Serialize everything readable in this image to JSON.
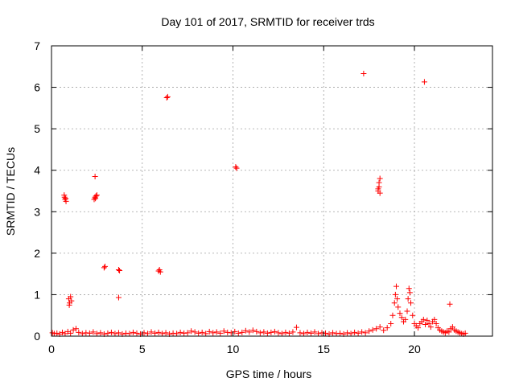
{
  "chart_data": {
    "type": "scatter",
    "title": "Day 101 of 2017, SRMTID for receiver trds",
    "xlabel": "GPS time / hours",
    "ylabel": "SRMTID / TECUs",
    "xlim": [
      0,
      24.3
    ],
    "ylim": [
      0,
      7
    ],
    "x_ticks": [
      0,
      5,
      10,
      15,
      20
    ],
    "y_ticks": [
      0,
      1,
      2,
      3,
      4,
      5,
      6,
      7
    ],
    "grid": true,
    "marker": "+",
    "marker_color": "#ff0000",
    "series": [
      {
        "name": "SRMTID",
        "points": [
          [
            0.05,
            0.08
          ],
          [
            0.15,
            0.06
          ],
          [
            0.3,
            0.07
          ],
          [
            0.45,
            0.05
          ],
          [
            0.6,
            0.09
          ],
          [
            0.75,
            0.06
          ],
          [
            0.9,
            0.11
          ],
          [
            1.05,
            0.07
          ],
          [
            1.2,
            0.15
          ],
          [
            1.35,
            0.18
          ],
          [
            1.5,
            0.09
          ],
          [
            1.7,
            0.06
          ],
          [
            1.9,
            0.08
          ],
          [
            2.1,
            0.07
          ],
          [
            2.3,
            0.1
          ],
          [
            2.5,
            0.06
          ],
          [
            2.7,
            0.08
          ],
          [
            2.9,
            0.05
          ],
          [
            3.1,
            0.07
          ],
          [
            3.3,
            0.09
          ],
          [
            3.5,
            0.06
          ],
          [
            3.7,
            0.08
          ],
          [
            3.9,
            0.05
          ],
          [
            4.1,
            0.07
          ],
          [
            4.3,
            0.06
          ],
          [
            4.5,
            0.09
          ],
          [
            4.7,
            0.07
          ],
          [
            4.9,
            0.05
          ],
          [
            5.1,
            0.08
          ],
          [
            5.3,
            0.06
          ],
          [
            5.5,
            0.1
          ],
          [
            5.7,
            0.07
          ],
          [
            5.9,
            0.09
          ],
          [
            6.1,
            0.06
          ],
          [
            6.3,
            0.08
          ],
          [
            6.5,
            0.05
          ],
          [
            6.7,
            0.07
          ],
          [
            6.9,
            0.06
          ],
          [
            7.1,
            0.09
          ],
          [
            7.3,
            0.07
          ],
          [
            7.5,
            0.08
          ],
          [
            7.7,
            0.12
          ],
          [
            7.9,
            0.1
          ],
          [
            8.1,
            0.07
          ],
          [
            8.3,
            0.09
          ],
          [
            8.5,
            0.06
          ],
          [
            8.7,
            0.11
          ],
          [
            8.9,
            0.08
          ],
          [
            9.1,
            0.1
          ],
          [
            9.3,
            0.07
          ],
          [
            9.5,
            0.12
          ],
          [
            9.7,
            0.09
          ],
          [
            9.9,
            0.08
          ],
          [
            10.1,
            0.11
          ],
          [
            10.3,
            0.07
          ],
          [
            10.5,
            0.09
          ],
          [
            10.7,
            0.13
          ],
          [
            10.9,
            0.1
          ],
          [
            11.1,
            0.14
          ],
          [
            11.3,
            0.11
          ],
          [
            11.5,
            0.08
          ],
          [
            11.7,
            0.1
          ],
          [
            11.9,
            0.07
          ],
          [
            12.1,
            0.09
          ],
          [
            12.3,
            0.11
          ],
          [
            12.5,
            0.08
          ],
          [
            12.7,
            0.06
          ],
          [
            12.9,
            0.09
          ],
          [
            13.1,
            0.07
          ],
          [
            13.3,
            0.1
          ],
          [
            13.5,
            0.21
          ],
          [
            13.7,
            0.08
          ],
          [
            13.9,
            0.06
          ],
          [
            14.1,
            0.09
          ],
          [
            14.3,
            0.07
          ],
          [
            14.5,
            0.1
          ],
          [
            14.7,
            0.06
          ],
          [
            14.9,
            0.08
          ],
          [
            15.1,
            0.07
          ],
          [
            15.3,
            0.05
          ],
          [
            15.5,
            0.08
          ],
          [
            15.7,
            0.06
          ],
          [
            15.9,
            0.07
          ],
          [
            16.1,
            0.05
          ],
          [
            16.3,
            0.08
          ],
          [
            16.5,
            0.06
          ],
          [
            16.7,
            0.09
          ],
          [
            16.9,
            0.07
          ],
          [
            17.1,
            0.1
          ],
          [
            17.3,
            0.08
          ],
          [
            17.5,
            0.12
          ],
          [
            17.7,
            0.15
          ],
          [
            17.9,
            0.18
          ],
          [
            18.1,
            0.22
          ],
          [
            18.3,
            0.14
          ],
          [
            18.5,
            0.2
          ],
          [
            18.7,
            0.3
          ],
          [
            18.8,
            0.5
          ],
          [
            18.9,
            0.8
          ],
          [
            18.95,
            1.0
          ],
          [
            19.0,
            1.2
          ],
          [
            19.05,
            0.9
          ],
          [
            19.1,
            0.7
          ],
          [
            19.2,
            0.55
          ],
          [
            19.3,
            0.45
          ],
          [
            19.4,
            0.35
          ],
          [
            19.5,
            0.4
          ],
          [
            19.6,
            0.6
          ],
          [
            19.65,
            0.9
          ],
          [
            19.7,
            1.15
          ],
          [
            19.75,
            1.05
          ],
          [
            19.8,
            0.8
          ],
          [
            19.9,
            0.5
          ],
          [
            20.0,
            0.3
          ],
          [
            20.1,
            0.25
          ],
          [
            20.2,
            0.2
          ],
          [
            20.3,
            0.3
          ],
          [
            20.4,
            0.35
          ],
          [
            20.5,
            0.4
          ],
          [
            20.6,
            0.28
          ],
          [
            20.7,
            0.38
          ],
          [
            20.8,
            0.3
          ],
          [
            20.9,
            0.22
          ],
          [
            21.0,
            0.35
          ],
          [
            21.1,
            0.4
          ],
          [
            21.2,
            0.3
          ],
          [
            21.3,
            0.2
          ],
          [
            21.4,
            0.15
          ],
          [
            21.5,
            0.12
          ],
          [
            21.6,
            0.1
          ],
          [
            21.7,
            0.08
          ],
          [
            21.8,
            0.12
          ],
          [
            21.9,
            0.1
          ],
          [
            22.0,
            0.18
          ],
          [
            22.1,
            0.22
          ],
          [
            22.2,
            0.15
          ],
          [
            22.3,
            0.12
          ],
          [
            22.4,
            0.1
          ],
          [
            22.5,
            0.08
          ],
          [
            22.6,
            0.06
          ],
          [
            22.7,
            0.05
          ],
          [
            22.8,
            0.07
          ],
          [
            0.7,
            3.4
          ],
          [
            0.75,
            3.3
          ],
          [
            0.8,
            3.25
          ],
          [
            0.72,
            3.35
          ],
          [
            0.78,
            3.32
          ],
          [
            0.95,
            0.9
          ],
          [
            1.0,
            0.8
          ],
          [
            1.05,
            0.95
          ],
          [
            1.1,
            0.85
          ],
          [
            0.98,
            0.75
          ],
          [
            2.35,
            3.3
          ],
          [
            2.4,
            3.35
          ],
          [
            2.45,
            3.38
          ],
          [
            2.5,
            3.4
          ],
          [
            2.42,
            3.32
          ],
          [
            2.4,
            3.85
          ],
          [
            2.9,
            1.65
          ],
          [
            2.95,
            1.68
          ],
          [
            3.7,
            1.6
          ],
          [
            3.75,
            1.58
          ],
          [
            3.7,
            0.93
          ],
          [
            5.9,
            1.57
          ],
          [
            5.95,
            1.6
          ],
          [
            6.0,
            1.55
          ],
          [
            6.35,
            5.75
          ],
          [
            6.4,
            5.77
          ],
          [
            10.15,
            4.08
          ],
          [
            10.2,
            4.05
          ],
          [
            17.2,
            6.33
          ],
          [
            18.0,
            3.5
          ],
          [
            18.05,
            3.6
          ],
          [
            18.1,
            3.8
          ],
          [
            18.05,
            3.7
          ],
          [
            18.0,
            3.55
          ],
          [
            18.1,
            3.45
          ],
          [
            20.55,
            6.13
          ],
          [
            21.95,
            0.77
          ]
        ]
      }
    ]
  }
}
